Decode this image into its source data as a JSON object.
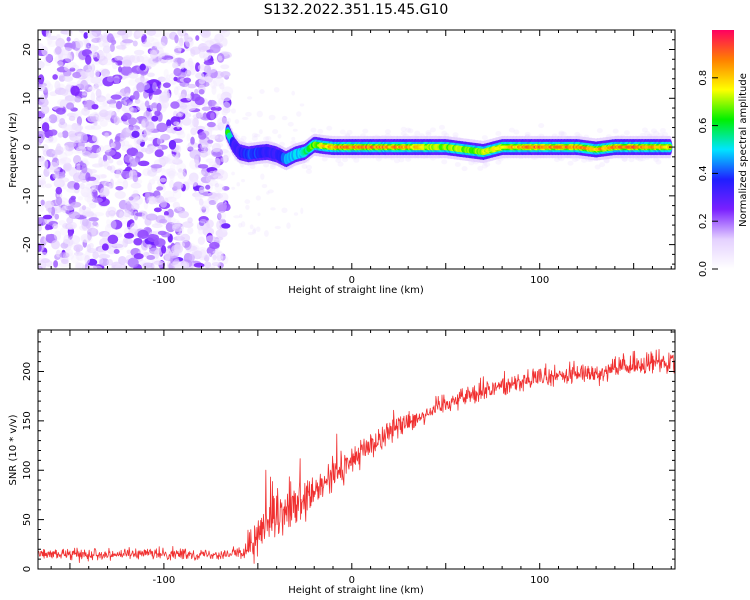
{
  "title": "S132.2022.351.15.45.G10",
  "chart_data": [
    {
      "type": "heatmap",
      "xlabel": "Height of straight line (km)",
      "ylabel": "Frequency (Hz)",
      "xlim": [
        -167,
        172
      ],
      "ylim": [
        -25,
        24
      ],
      "xticks": [
        -100,
        0,
        100
      ],
      "yticks": [
        -20,
        -10,
        0,
        10,
        20
      ],
      "noise_region_x": [
        -167,
        -66
      ],
      "ridge": {
        "x": [
          -66,
          -63,
          -60,
          -55,
          -50,
          -45,
          -40,
          -35,
          -30,
          -25,
          -20,
          -15,
          -10,
          0,
          10,
          20,
          30,
          40,
          50,
          60,
          70,
          80,
          90,
          100,
          110,
          120,
          130,
          140,
          150,
          160,
          170
        ],
        "y": [
          3,
          0.5,
          -1,
          -1.5,
          -1.2,
          -1,
          -1.5,
          -2.5,
          -1.5,
          -1,
          0.5,
          0.2,
          0,
          0,
          0,
          0,
          0,
          0,
          0,
          -0.5,
          -1,
          0,
          0,
          0,
          0,
          0,
          -0.5,
          0,
          0,
          0,
          0
        ],
        "amplitude": [
          0.7,
          0.3,
          0.35,
          0.4,
          0.4,
          0.35,
          0.35,
          0.45,
          0.5,
          0.55,
          0.7,
          0.8,
          0.85,
          0.9,
          0.9,
          0.88,
          0.85,
          0.75,
          0.7,
          0.72,
          0.75,
          0.8,
          0.85,
          0.9,
          0.9,
          0.88,
          0.82,
          0.88,
          0.9,
          0.85,
          0.82
        ]
      },
      "colorbar": {
        "label": "Normalized spectral amplitude",
        "range": [
          0,
          1
        ],
        "ticks": [
          "0.0",
          "0.2",
          "0.4",
          "0.6",
          "0.8"
        ],
        "tick_values": [
          0,
          0.2,
          0.4,
          0.6,
          0.8
        ],
        "colormap": [
          "#ffffff",
          "#e4d0ff",
          "#7a20ff",
          "#1f1fff",
          "#00e5ff",
          "#00f000",
          "#ffff00",
          "#ff8000",
          "#ff0060"
        ]
      }
    },
    {
      "type": "line",
      "xlabel": "Height of straight line (km)",
      "ylabel": "SNR (10 * v/v)",
      "xlim": [
        -167,
        172
      ],
      "ylim": [
        0,
        242
      ],
      "xticks": [
        -100,
        0,
        100
      ],
      "yticks": [
        0,
        50,
        100,
        150,
        200
      ],
      "series": [
        {
          "color": "#f03030",
          "envelope_x": [
            -167,
            -140,
            -100,
            -70,
            -58,
            -50,
            -40,
            -30,
            -20,
            -10,
            0,
            10,
            20,
            30,
            40,
            50,
            60,
            70,
            80,
            90,
            100,
            110,
            120,
            130,
            140,
            150,
            160,
            172
          ],
          "envelope_mean": [
            15,
            15,
            15,
            15,
            16,
            35,
            50,
            62,
            75,
            95,
            110,
            125,
            140,
            150,
            158,
            168,
            175,
            180,
            185,
            190,
            193,
            195,
            197,
            199,
            202,
            205,
            208,
            212
          ],
          "envelope_spread": [
            6,
            6,
            6,
            6,
            8,
            25,
            28,
            25,
            22,
            20,
            18,
            16,
            14,
            13,
            12,
            12,
            12,
            12,
            12,
            12,
            12,
            12,
            12,
            12,
            12,
            13,
            13,
            14
          ]
        }
      ]
    }
  ]
}
